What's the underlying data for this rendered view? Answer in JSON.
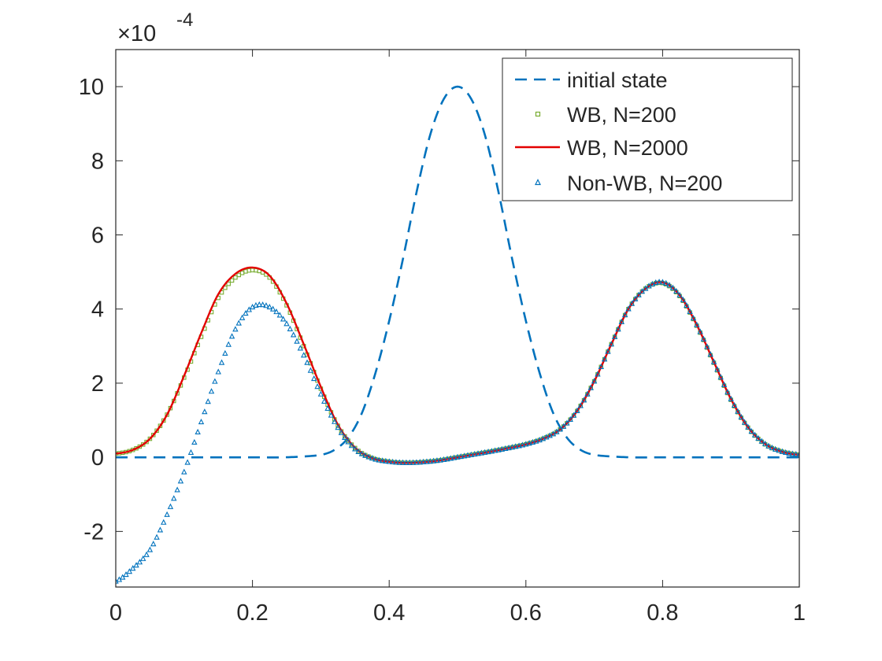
{
  "chart_data": {
    "type": "line",
    "title": "",
    "xlabel": "",
    "ylabel": "",
    "xlim": [
      0,
      1
    ],
    "ylim": [
      -3.5,
      11
    ],
    "y_scale_prefix": "×10",
    "y_scale_exponent": "-4",
    "x_ticks": [
      0,
      0.2,
      0.4,
      0.6,
      0.8,
      1
    ],
    "x_tick_labels": [
      "0",
      "0.2",
      "0.4",
      "0.6",
      "0.8",
      "1"
    ],
    "y_ticks": [
      -2,
      0,
      2,
      4,
      6,
      8,
      10
    ],
    "y_tick_labels": [
      "-2",
      "0",
      "2",
      "4",
      "6",
      "8",
      "10"
    ],
    "legend_position": "top-right",
    "series": [
      {
        "name": "initial state",
        "style": "dashed",
        "color": "#0072BD",
        "x": [
          0,
          0.05,
          0.1,
          0.15,
          0.2,
          0.25,
          0.3,
          0.32,
          0.34,
          0.36,
          0.38,
          0.4,
          0.42,
          0.44,
          0.46,
          0.48,
          0.5,
          0.52,
          0.54,
          0.56,
          0.58,
          0.6,
          0.62,
          0.64,
          0.66,
          0.68,
          0.7,
          0.75,
          0.8,
          0.85,
          0.9,
          0.95,
          1
        ],
        "values": [
          0,
          0,
          0,
          0,
          0,
          0.001,
          0.06,
          0.2,
          0.53,
          1.19,
          2.28,
          3.68,
          5.34,
          7.15,
          8.7,
          9.67,
          10,
          9.67,
          8.7,
          7.15,
          5.34,
          3.68,
          2.28,
          1.19,
          0.53,
          0.2,
          0.06,
          0.001,
          0,
          0,
          0,
          0,
          0
        ]
      },
      {
        "name": "WB, N=200",
        "style": "markers-square",
        "color": "#77AC30",
        "x": [
          0,
          0.025,
          0.05,
          0.075,
          0.1,
          0.125,
          0.15,
          0.175,
          0.2,
          0.225,
          0.25,
          0.275,
          0.3,
          0.325,
          0.35,
          0.375,
          0.4,
          0.425,
          0.45,
          0.475,
          0.5,
          0.525,
          0.55,
          0.575,
          0.6,
          0.625,
          0.65,
          0.675,
          0.7,
          0.725,
          0.75,
          0.775,
          0.8,
          0.825,
          0.85,
          0.875,
          0.9,
          0.925,
          0.95,
          0.975,
          1
        ],
        "values": [
          0.1,
          0.2,
          0.5,
          1.15,
          2.15,
          3.25,
          4.3,
          4.85,
          5.05,
          4.85,
          4.1,
          3.0,
          1.85,
          0.85,
          0.25,
          -0.02,
          -0.12,
          -0.15,
          -0.13,
          -0.08,
          0,
          0.08,
          0.16,
          0.25,
          0.35,
          0.5,
          0.75,
          1.25,
          2.05,
          3.05,
          4.0,
          4.55,
          4.7,
          4.35,
          3.55,
          2.55,
          1.55,
          0.8,
          0.35,
          0.15,
          0.07
        ]
      },
      {
        "name": "WB, N=2000",
        "style": "solid",
        "color": "#E30000",
        "x": [
          0,
          0.025,
          0.05,
          0.075,
          0.1,
          0.125,
          0.15,
          0.175,
          0.2,
          0.225,
          0.25,
          0.275,
          0.3,
          0.325,
          0.35,
          0.375,
          0.4,
          0.425,
          0.45,
          0.475,
          0.5,
          0.525,
          0.55,
          0.575,
          0.6,
          0.625,
          0.65,
          0.675,
          0.7,
          0.725,
          0.75,
          0.775,
          0.8,
          0.825,
          0.85,
          0.875,
          0.9,
          0.925,
          0.95,
          0.975,
          1
        ],
        "values": [
          0.1,
          0.2,
          0.5,
          1.15,
          2.2,
          3.35,
          4.4,
          4.95,
          5.12,
          4.9,
          4.15,
          3.05,
          1.9,
          0.88,
          0.26,
          -0.02,
          -0.12,
          -0.15,
          -0.13,
          -0.08,
          0,
          0.08,
          0.16,
          0.25,
          0.35,
          0.5,
          0.75,
          1.25,
          2.05,
          3.05,
          4.0,
          4.55,
          4.72,
          4.37,
          3.57,
          2.57,
          1.57,
          0.81,
          0.36,
          0.15,
          0.07
        ]
      },
      {
        "name": "Non-WB, N=200",
        "style": "markers-triangle",
        "color": "#0072BD",
        "x": [
          0,
          0.025,
          0.05,
          0.075,
          0.1,
          0.125,
          0.15,
          0.175,
          0.2,
          0.225,
          0.25,
          0.275,
          0.3,
          0.325,
          0.35,
          0.375,
          0.4,
          0.425,
          0.45,
          0.475,
          0.5,
          0.525,
          0.55,
          0.575,
          0.6,
          0.625,
          0.65,
          0.675,
          0.7,
          0.725,
          0.75,
          0.775,
          0.8,
          0.825,
          0.85,
          0.875,
          0.9,
          0.925,
          0.95,
          0.975,
          1
        ],
        "values": [
          -3.35,
          -3.0,
          -2.5,
          -1.55,
          -0.4,
          0.95,
          2.3,
          3.45,
          4.05,
          4.05,
          3.6,
          2.75,
          1.7,
          0.8,
          0.22,
          -0.03,
          -0.12,
          -0.15,
          -0.13,
          -0.08,
          0,
          0.08,
          0.16,
          0.25,
          0.35,
          0.5,
          0.75,
          1.25,
          2.05,
          3.05,
          4.0,
          4.55,
          4.72,
          4.37,
          3.57,
          2.57,
          1.57,
          0.81,
          0.36,
          0.15,
          0.07
        ]
      }
    ]
  }
}
